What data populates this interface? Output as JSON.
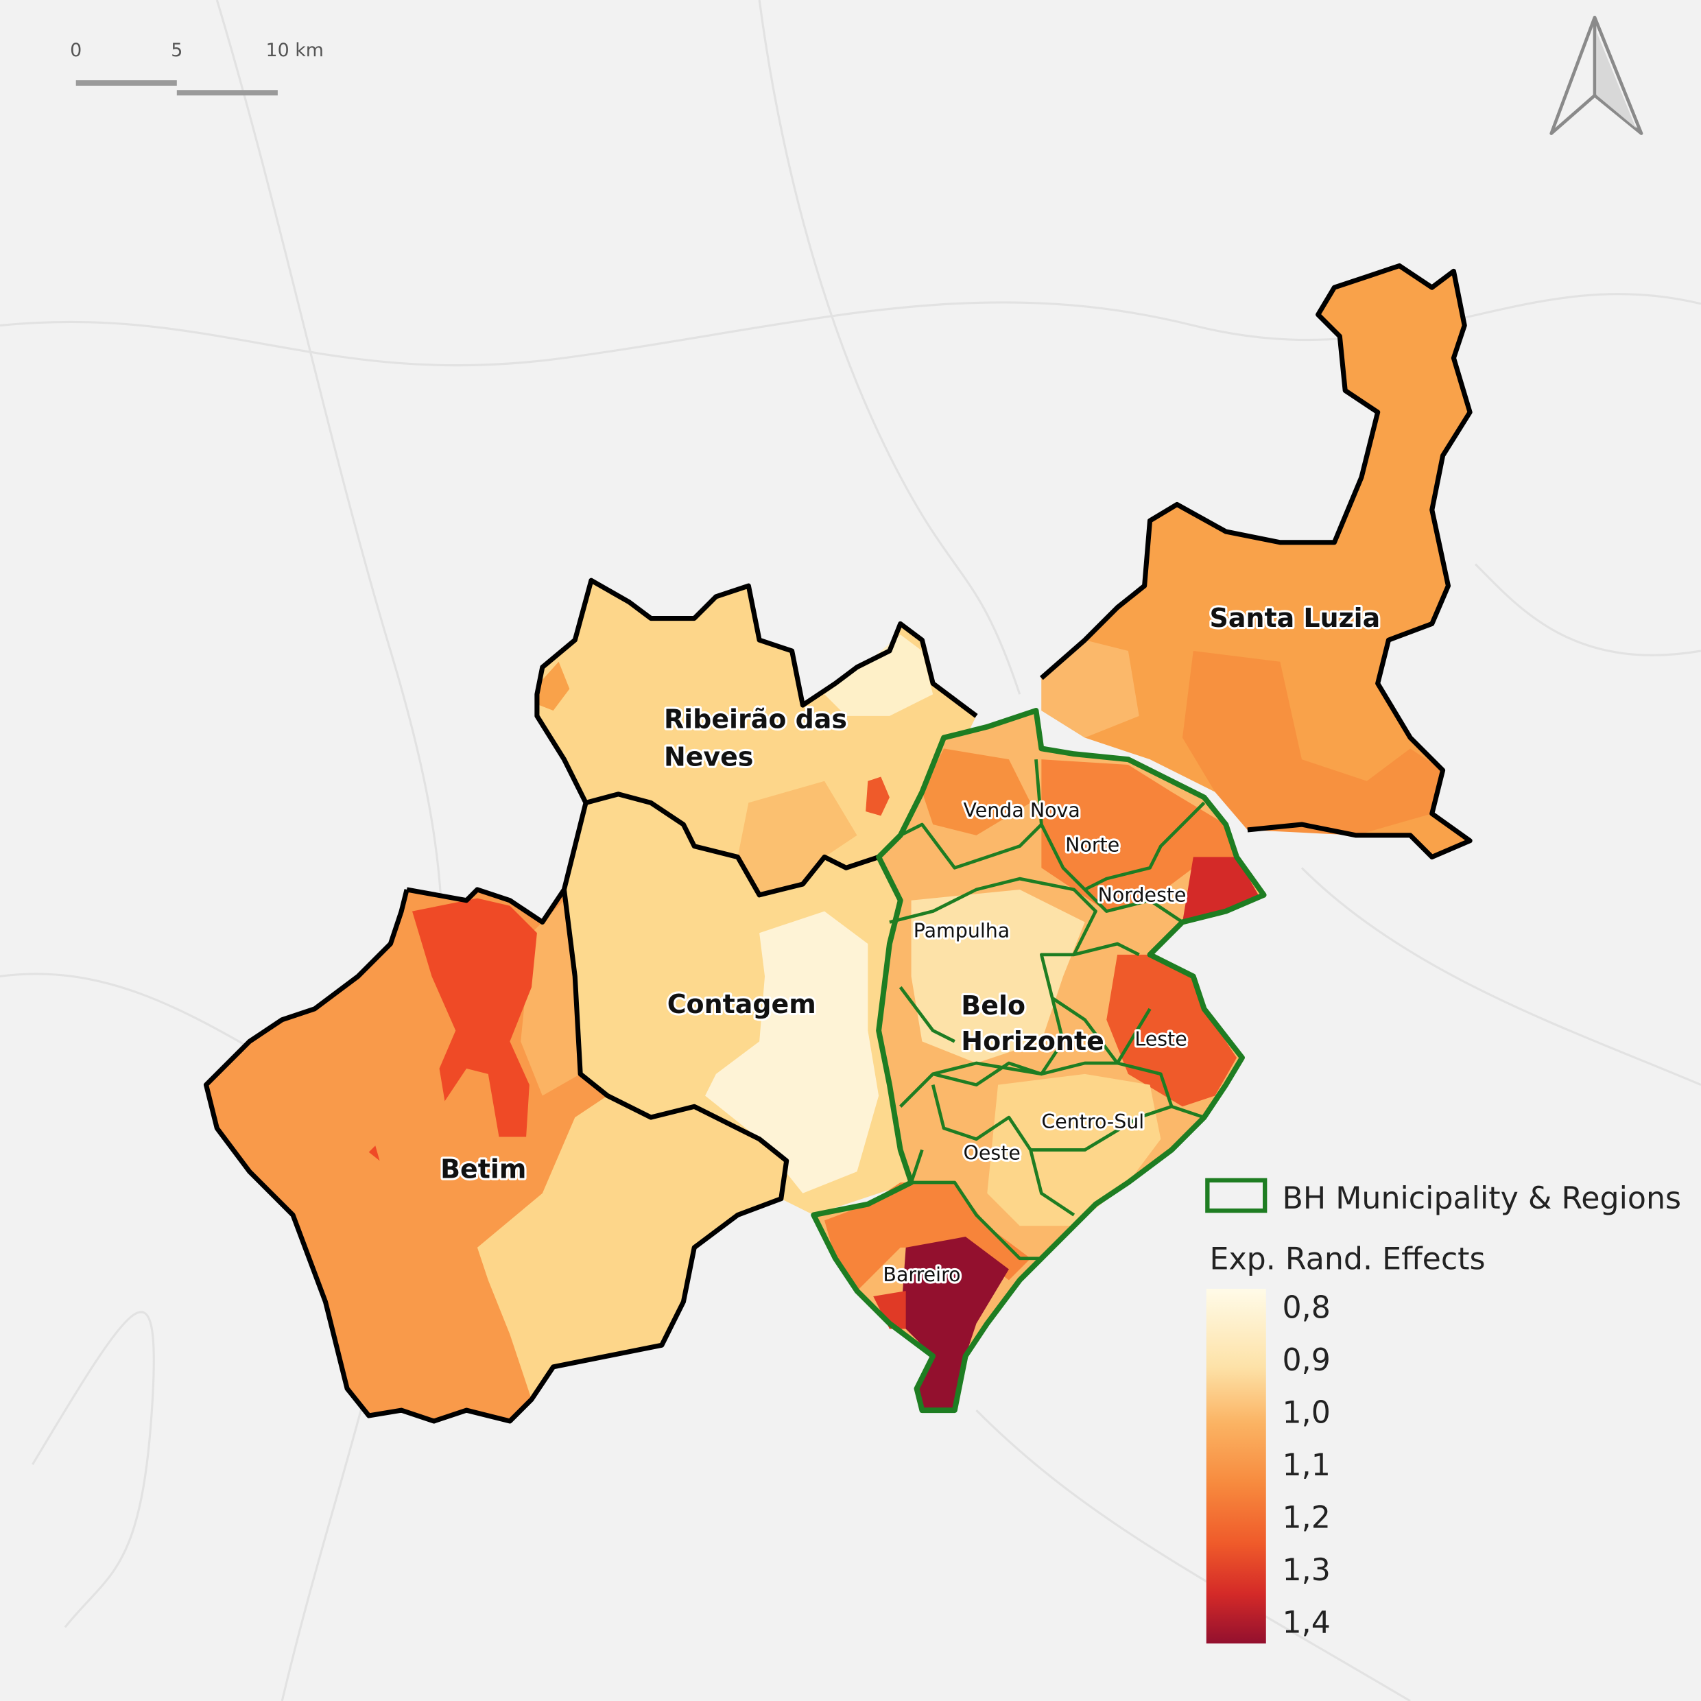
{
  "scale_bar": {
    "labels": [
      "0",
      "5",
      "10 km"
    ]
  },
  "municipalities": {
    "ribeirao": [
      "Ribeirão das",
      "Neves"
    ],
    "contagem": "Contagem",
    "betim": "Betim",
    "santa_luzia": "Santa Luzia",
    "belo_horizonte": [
      "Belo",
      "Horizonte"
    ]
  },
  "regions": [
    "Venda Nova",
    "Norte",
    "Nordeste",
    "Pampulha",
    "Leste",
    "Centro-Sul",
    "Oeste",
    "Barreiro"
  ],
  "legend": {
    "outline_label": "BH Municipality & Regions",
    "title": "Exp. Rand. Effects",
    "ticks": [
      {
        "value": 0.8,
        "label": "0,8"
      },
      {
        "value": 0.9,
        "label": "0,9"
      },
      {
        "value": 1.0,
        "label": "1,0"
      },
      {
        "value": 1.1,
        "label": "1,1"
      },
      {
        "value": 1.2,
        "label": "1,2"
      },
      {
        "value": 1.3,
        "label": "1,3"
      },
      {
        "value": 1.4,
        "label": "1,4"
      }
    ]
  }
}
